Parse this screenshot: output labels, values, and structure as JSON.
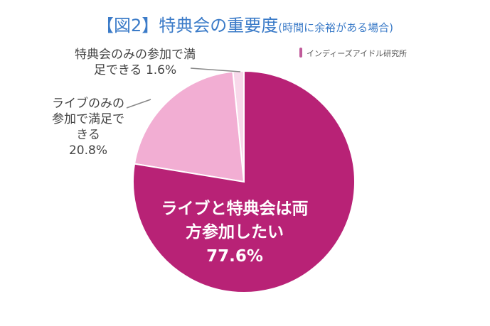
{
  "chart_data": {
    "type": "pie",
    "title": "【図2】特典会の重要度",
    "subtitle": "(時間に余裕がある場合)",
    "source": "インディーズアイドル研究所",
    "categories": [
      "ライブと特典会は両方参加したい",
      "ライブのみの参加で満足できる",
      "特典会のみの参加で満足できる"
    ],
    "values": [
      77.6,
      20.8,
      1.6
    ],
    "value_labels": [
      "77.6%",
      "20.8%",
      "1.6%"
    ],
    "colors": [
      "#b82276",
      "#f2aed3",
      "#f8d8ea"
    ]
  }
}
